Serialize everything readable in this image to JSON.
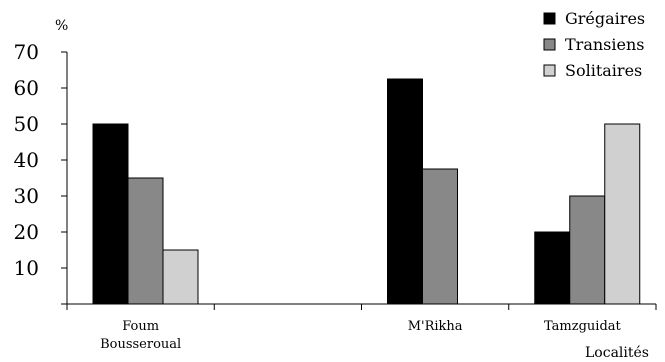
{
  "chart_data": {
    "type": "bar",
    "categories": [
      "Foum\nBousseroual",
      "",
      "M'Rikha",
      "Tamzguidat"
    ],
    "series": [
      {
        "name": "Grégaires",
        "values": [
          50,
          null,
          62.5,
          20
        ],
        "color": "#000000"
      },
      {
        "name": "Transiens",
        "values": [
          35,
          null,
          37.5,
          30
        ],
        "color": "#888888"
      },
      {
        "name": "Solitaires",
        "values": [
          15,
          null,
          null,
          50
        ],
        "color": "#d0d0d0"
      }
    ],
    "ylim": [
      0,
      70
    ],
    "yticks": [
      10,
      20,
      30,
      40,
      50,
      60,
      70
    ],
    "ylabel": "%",
    "xlabel": "Localités",
    "legend_position": "top-right",
    "grid": false
  }
}
